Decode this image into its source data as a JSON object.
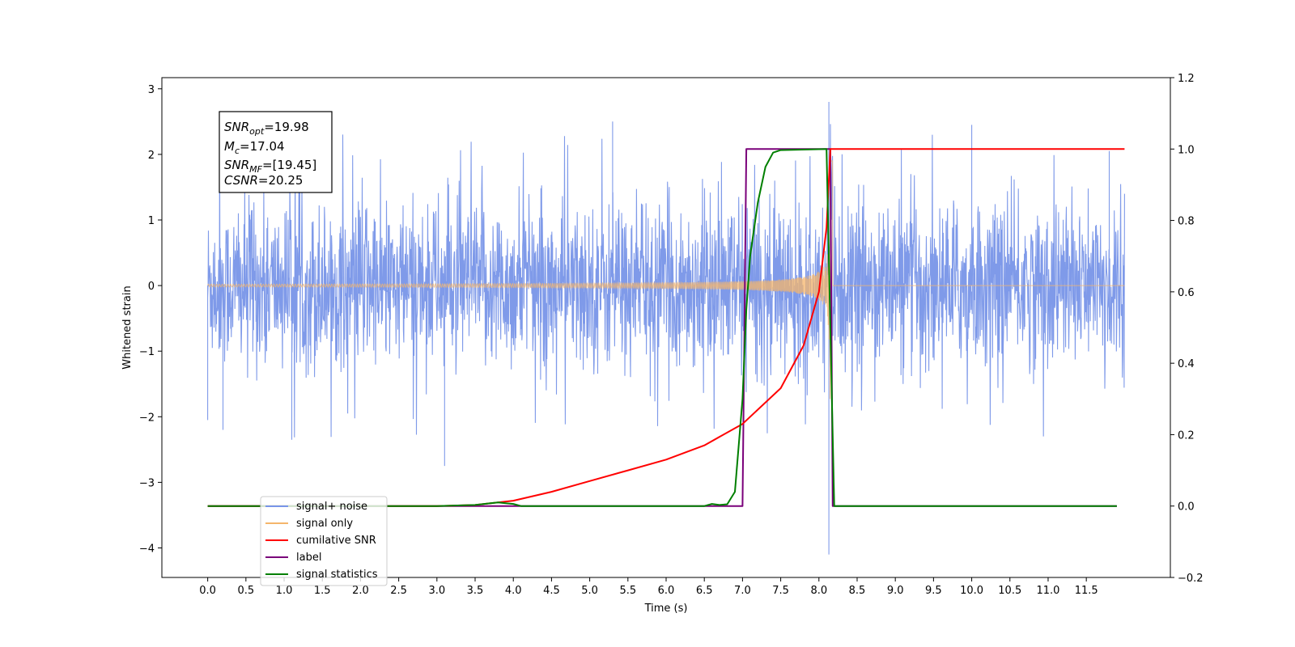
{
  "chart_data": {
    "type": "line",
    "xlabel": "Time (s)",
    "ylabel": "Whitened strain",
    "xlim": [
      -0.6,
      12.6
    ],
    "ylim": [
      -4.45,
      3.17
    ],
    "ylim_right": [
      -0.2,
      1.2
    ],
    "x_ticks": [
      0.0,
      0.5,
      1.0,
      1.5,
      2.0,
      2.5,
      3.0,
      3.5,
      4.0,
      4.5,
      5.0,
      5.5,
      6.0,
      6.5,
      7.0,
      7.5,
      8.0,
      8.5,
      9.0,
      9.5,
      10.0,
      10.5,
      11.0,
      11.5
    ],
    "x_tick_labels": [
      "0.0",
      "0.5",
      "1.0",
      "1.5",
      "2.0",
      "2.5",
      "3.0",
      "3.5",
      "4.0",
      "4.5",
      "5.0",
      "5.5",
      "6.0",
      "6.5",
      "7.0",
      "7.5",
      "8.0",
      "8.5",
      "9.0",
      "9.5",
      "10.0",
      "10.5",
      "11.0",
      "11.5"
    ],
    "y_ticks_left": [
      3,
      2,
      1,
      0,
      -1,
      -2,
      -3,
      -4
    ],
    "y_tick_labels_left": [
      "3",
      "2",
      "1",
      "0",
      "−1",
      "−2",
      "−3",
      "−4"
    ],
    "y_ticks_right": [
      1.2,
      1.0,
      0.8,
      0.6,
      0.4,
      0.2,
      0.0,
      -0.2
    ],
    "y_tick_labels_right": [
      "1.2",
      "1.0",
      "0.8",
      "0.6",
      "0.4",
      "0.2",
      "0.0",
      "−0.2"
    ],
    "grid": false,
    "legend_position": "bottom-left",
    "annotation": {
      "snr_opt": {
        "base": "SNR",
        "sub": "opt",
        "value": "=19.98"
      },
      "mc": {
        "base": "M",
        "sub": "c",
        "value": "=17.04"
      },
      "snr_mf": {
        "base": "SNR",
        "sub": "MF",
        "value": "=[19.45]"
      },
      "csnr": {
        "base": "CSNR",
        "value": "=20.25"
      }
    },
    "series": [
      {
        "name": "signal+ noise",
        "axis": "left",
        "color": "#7895e8",
        "x_range": [
          0.0,
          12.0
        ],
        "noise_amplitude": 1.4,
        "spike_points": [
          [
            0.0,
            -2.05
          ],
          [
            0.2,
            -2.2
          ],
          [
            1.1,
            -2.35
          ],
          [
            3.1,
            -2.75
          ],
          [
            8.13,
            -4.1
          ],
          [
            8.13,
            2.8
          ],
          [
            5.3,
            2.5
          ],
          [
            10.0,
            2.45
          ],
          [
            11.8,
            2.05
          ]
        ]
      },
      {
        "name": "signal only",
        "axis": "left",
        "color": "#f5b56b",
        "chirp_start": 0.0,
        "merger_time": 8.15,
        "peak_amplitude": 2.6,
        "end_time": 12.0
      },
      {
        "name": "cumilative SNR",
        "axis": "right",
        "color": "#ff0000",
        "x": [
          0.0,
          3.0,
          3.5,
          4.0,
          4.5,
          5.0,
          5.5,
          6.0,
          6.5,
          7.0,
          7.5,
          7.8,
          8.0,
          8.1,
          8.15,
          12.0
        ],
        "y": [
          0.0,
          0.0,
          0.003,
          0.015,
          0.04,
          0.07,
          0.1,
          0.13,
          0.17,
          0.23,
          0.33,
          0.45,
          0.6,
          0.78,
          1.0,
          1.0
        ]
      },
      {
        "name": "label",
        "axis": "right",
        "color": "#7a007a",
        "x": [
          0.0,
          7.0,
          7.05,
          8.15,
          8.18,
          11.9
        ],
        "y": [
          0.0,
          0.0,
          1.0,
          1.0,
          0.0,
          0.0
        ]
      },
      {
        "name": "signal statistics",
        "axis": "right",
        "color": "#007f00",
        "x": [
          0.0,
          2.5,
          3.0,
          3.5,
          3.7,
          3.8,
          3.9,
          4.0,
          4.1,
          6.5,
          6.6,
          6.7,
          6.8,
          6.9,
          7.0,
          7.05,
          7.1,
          7.2,
          7.3,
          7.4,
          7.5,
          8.1,
          8.15,
          8.2,
          8.25,
          11.9
        ],
        "y": [
          0.0,
          0.0,
          0.0,
          0.003,
          0.008,
          0.01,
          0.008,
          0.006,
          0.0,
          0.0,
          0.006,
          0.003,
          0.005,
          0.04,
          0.3,
          0.55,
          0.7,
          0.85,
          0.95,
          0.99,
          0.997,
          1.0,
          0.5,
          0.0,
          0.0,
          0.0
        ]
      }
    ],
    "legend": [
      "signal+ noise",
      "signal only",
      "cumilative SNR",
      "label",
      "signal statistics"
    ]
  }
}
